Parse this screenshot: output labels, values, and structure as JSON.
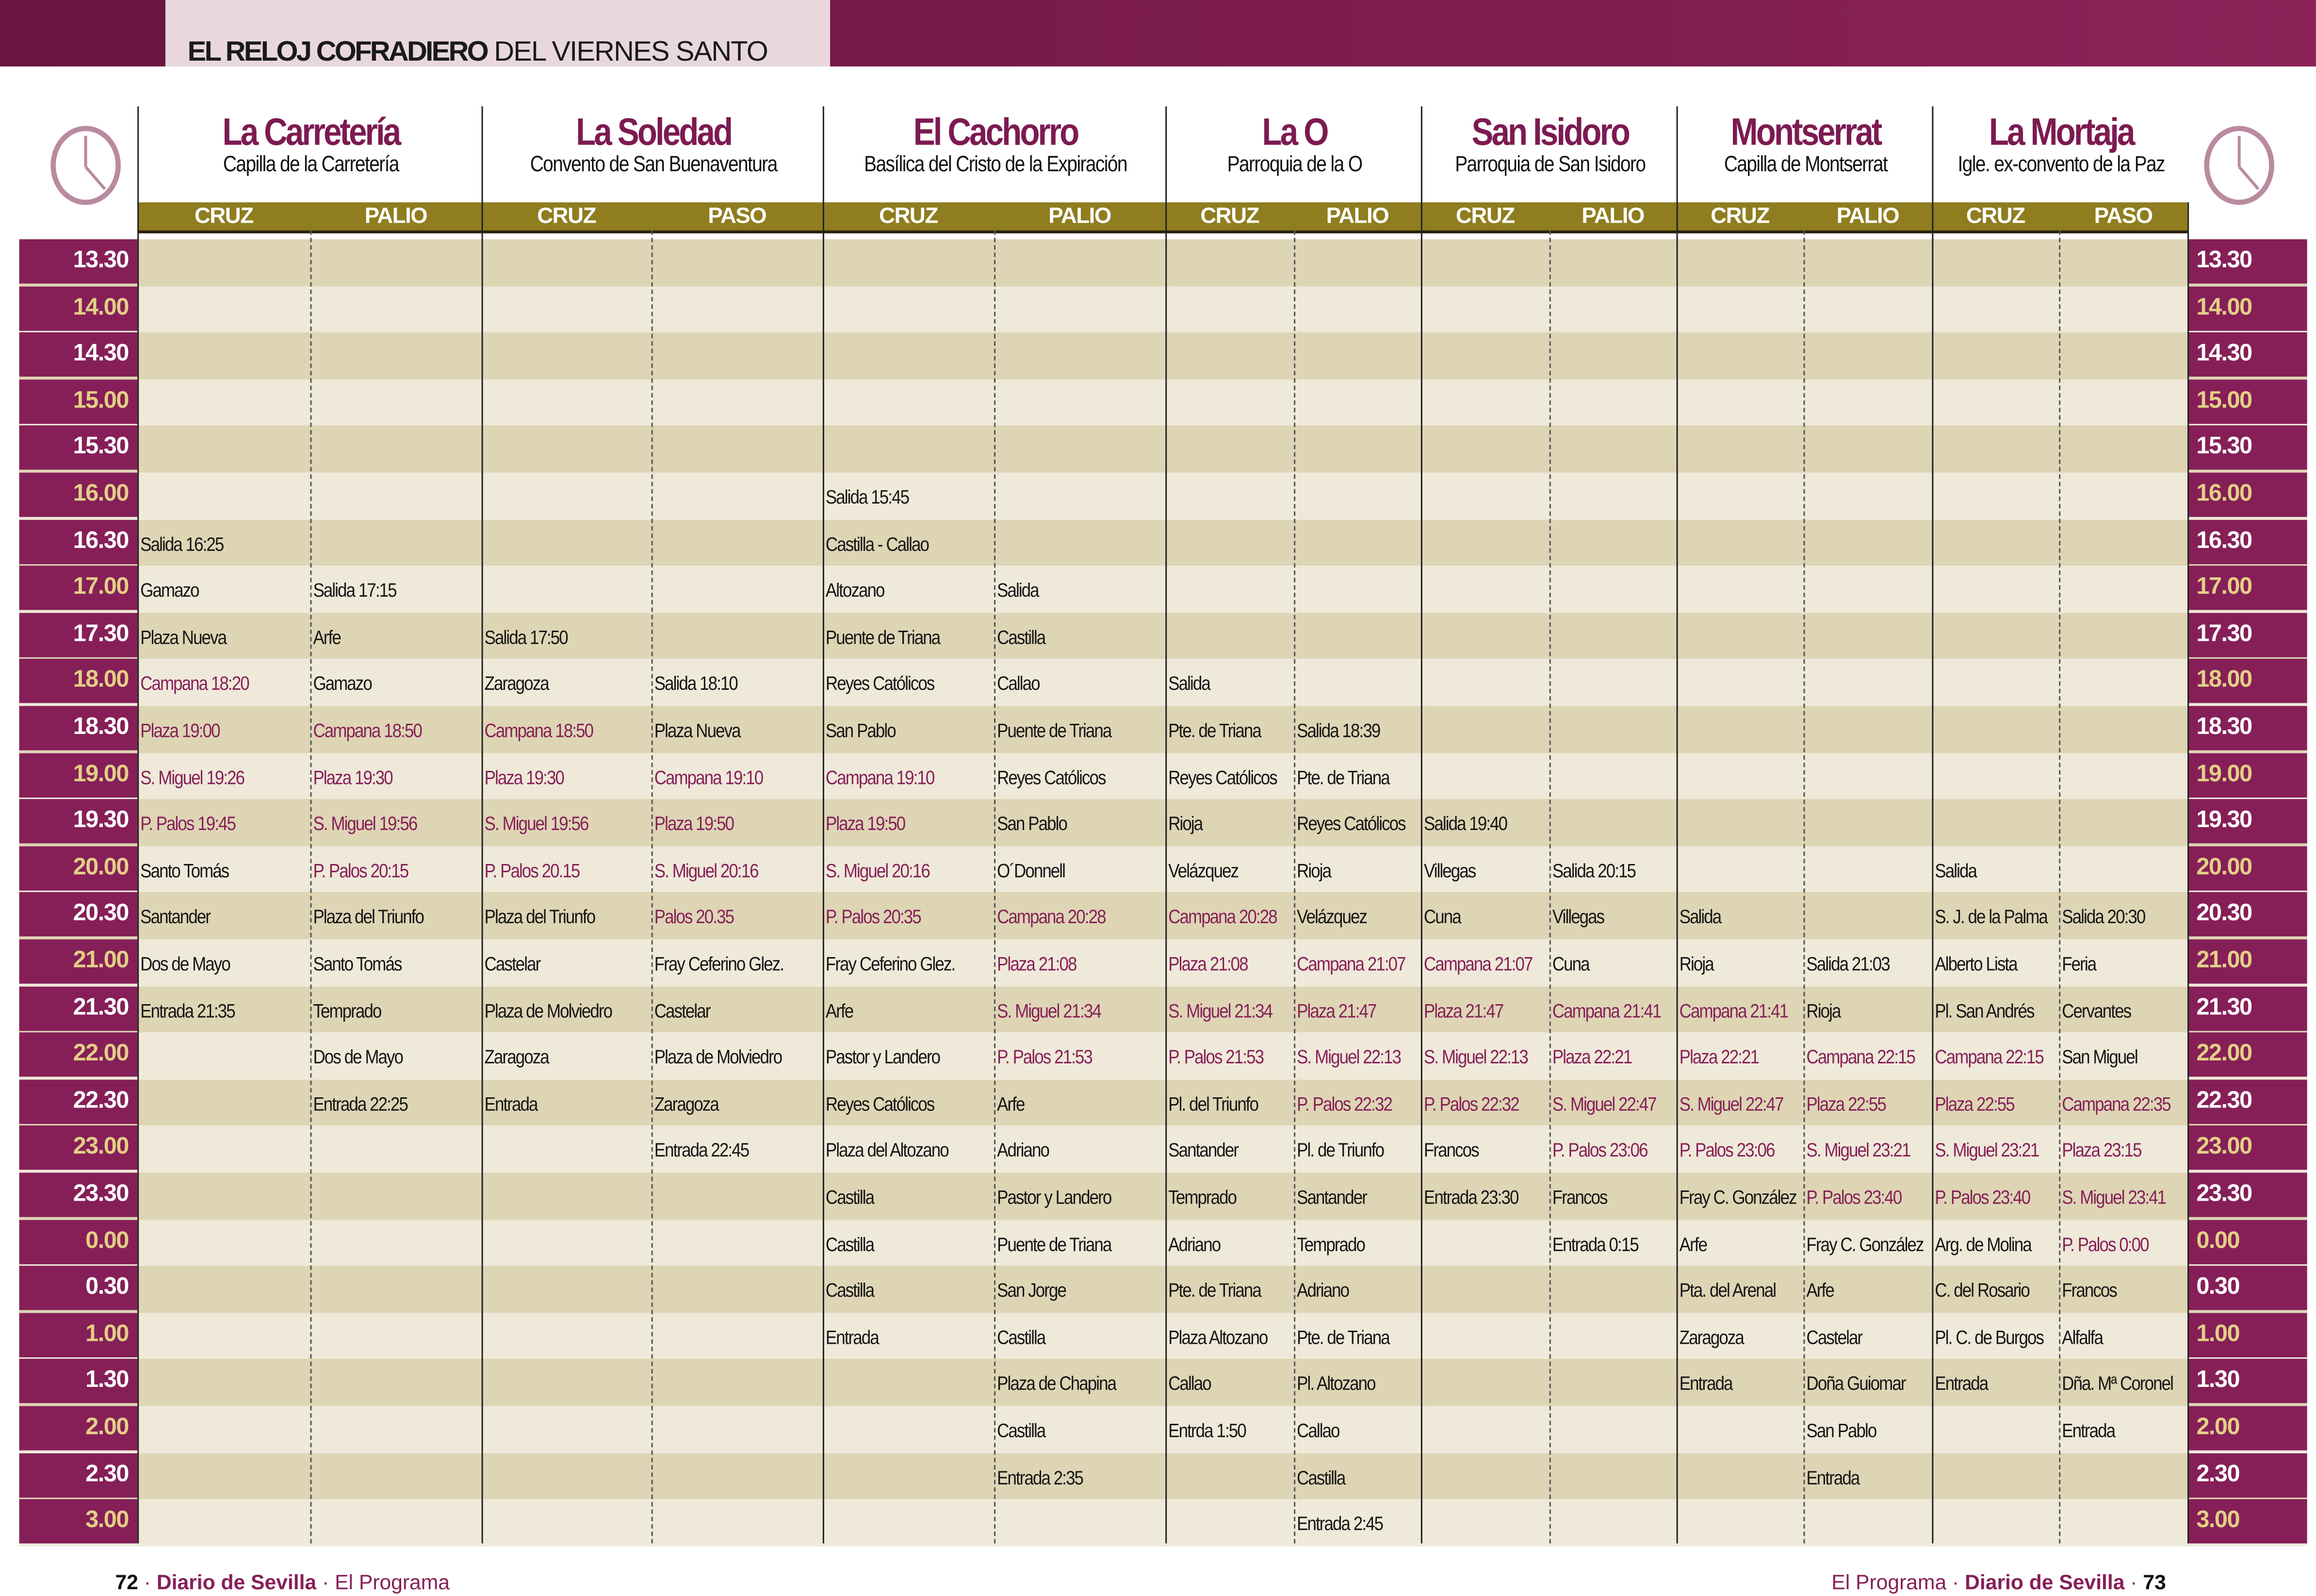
{
  "header": {
    "title_bold": "EL RELOJ COFRADIERO",
    "title_rest": "DEL VIERNES SANTO"
  },
  "colors": {
    "purple": "#861f58",
    "olive": "#8f7d1f",
    "row_dark": "#ded5b5",
    "row_light": "#efe9da",
    "gold_time": "#e2cf86"
  },
  "brotherhoods": [
    {
      "name": "La Carretería",
      "church": "Capilla de la Carretería",
      "cols": [
        "CRUZ",
        "PALIO"
      ]
    },
    {
      "name": "La Soledad",
      "church": "Convento de San Buenaventura",
      "cols": [
        "CRUZ",
        "PASO"
      ]
    },
    {
      "name": "El Cachorro",
      "church": "Basílica del Cristo de la Expiración",
      "cols": [
        "CRUZ",
        "PALIO"
      ]
    },
    {
      "name": "La O",
      "church": "Parroquia de la O",
      "cols": [
        "CRUZ",
        "PALIO"
      ]
    },
    {
      "name": "San Isidoro",
      "church": "Parroquia de San Isidoro",
      "cols": [
        "CRUZ",
        "PALIO"
      ]
    },
    {
      "name": "Montserrat",
      "church": "Capilla de Montserrat",
      "cols": [
        "CRUZ",
        "PALIO"
      ]
    },
    {
      "name": "La Mortaja",
      "church": "Igle. ex-convento de la Paz",
      "cols": [
        "CRUZ",
        "PASO"
      ]
    }
  ],
  "rows": [
    {
      "time": "13.30",
      "cells": [
        "",
        "",
        "",
        "",
        "",
        "",
        "",
        "",
        "",
        "",
        "",
        "",
        "",
        ""
      ]
    },
    {
      "time": "14.00",
      "cells": [
        "",
        "",
        "",
        "",
        "",
        "",
        "",
        "",
        "",
        "",
        "",
        "",
        "",
        ""
      ]
    },
    {
      "time": "14.30",
      "cells": [
        "",
        "",
        "",
        "",
        "",
        "",
        "",
        "",
        "",
        "",
        "",
        "",
        "",
        ""
      ]
    },
    {
      "time": "15.00",
      "cells": [
        "",
        "",
        "",
        "",
        "",
        "",
        "",
        "",
        "",
        "",
        "",
        "",
        "",
        ""
      ]
    },
    {
      "time": "15.30",
      "cells": [
        "",
        "",
        "",
        "",
        "",
        "",
        "",
        "",
        "",
        "",
        "",
        "",
        "",
        ""
      ]
    },
    {
      "time": "16.00",
      "cells": [
        "",
        "",
        "",
        "",
        "Salida 15:45",
        "",
        "",
        "",
        "",
        "",
        "",
        "",
        "",
        ""
      ]
    },
    {
      "time": "16.30",
      "cells": [
        "Salida 16:25",
        "",
        "",
        "",
        "Castilla - Callao",
        "",
        "",
        "",
        "",
        "",
        "",
        "",
        "",
        ""
      ]
    },
    {
      "time": "17.00",
      "cells": [
        "Gamazo",
        "Salida 17:15",
        "",
        "",
        "Altozano",
        "Salida",
        "",
        "",
        "",
        "",
        "",
        "",
        "",
        ""
      ]
    },
    {
      "time": "17.30",
      "cells": [
        "Plaza Nueva",
        "Arfe",
        "Salida 17:50",
        "",
        "Puente de Triana",
        "Castilla",
        "",
        "",
        "",
        "",
        "",
        "",
        "",
        ""
      ]
    },
    {
      "time": "18.00",
      "cells": [
        "Campana 18:20",
        "Gamazo",
        "Zaragoza",
        "Salida 18:10",
        "Reyes Católicos",
        "Callao",
        "Salida",
        "",
        "",
        "",
        "",
        "",
        "",
        ""
      ]
    },
    {
      "time": "18.30",
      "cells": [
        "Plaza 19:00",
        "Campana 18:50",
        "Campana 18:50",
        "Plaza Nueva",
        "San Pablo",
        "Puente de Triana",
        "Pte. de Triana",
        "Salida 18:39",
        "",
        "",
        "",
        "",
        "",
        ""
      ]
    },
    {
      "time": "19.00",
      "cells": [
        "S. Miguel 19:26",
        "Plaza 19:30",
        "Plaza 19:30",
        "Campana 19:10",
        "Campana 19:10",
        "Reyes Católicos",
        "Reyes Católicos",
        "Pte. de Triana",
        "",
        "",
        "",
        "",
        "",
        ""
      ]
    },
    {
      "time": "19.30",
      "cells": [
        "P. Palos 19:45",
        "S. Miguel 19:56",
        "S. Miguel 19:56",
        "Plaza 19:50",
        "Plaza 19:50",
        "San Pablo",
        "Rioja",
        "Reyes Católicos",
        "Salida 19:40",
        "",
        "",
        "",
        "",
        ""
      ]
    },
    {
      "time": "20.00",
      "cells": [
        "Santo Tomás",
        "P. Palos 20:15",
        "P. Palos 20.15",
        "S. Miguel 20:16",
        "S. Miguel 20:16",
        "O´Donnell",
        "Velázquez",
        "Rioja",
        "Villegas",
        "Salida 20:15",
        "",
        "",
        "Salida",
        ""
      ]
    },
    {
      "time": "20.30",
      "cells": [
        "Santander",
        "Plaza del Triunfo",
        "Plaza del Triunfo",
        "Palos 20.35",
        "P. Palos 20:35",
        "Campana 20:28",
        "Campana 20:28",
        "Velázquez",
        "Cuna",
        "Villegas",
        "Salida",
        "",
        "S. J. de la Palma",
        "Salida 20:30"
      ]
    },
    {
      "time": "21.00",
      "cells": [
        "Dos de Mayo",
        "Santo Tomás",
        "Castelar",
        "Fray Ceferino Glez.",
        "Fray Ceferino Glez.",
        "Plaza 21:08",
        "Plaza 21:08",
        "Campana 21:07",
        "Campana 21:07",
        "Cuna",
        "Rioja",
        "Salida 21:03",
        "Alberto Lista",
        "Feria"
      ]
    },
    {
      "time": "21.30",
      "cells": [
        "Entrada 21:35",
        "Temprado",
        "Plaza de Molviedro",
        "Castelar",
        "Arfe",
        "S. Miguel 21:34",
        "S. Miguel 21:34",
        "Plaza 21:47",
        "Plaza 21:47",
        "Campana 21:41",
        "Campana 21:41",
        "Rioja",
        "Pl. San Andrés",
        "Cervantes"
      ]
    },
    {
      "time": "22.00",
      "cells": [
        "",
        "Dos de Mayo",
        "Zaragoza",
        "Plaza de Molviedro",
        "Pastor y Landero",
        "P. Palos 21:53",
        "P. Palos 21:53",
        "S. Miguel 22:13",
        "S. Miguel 22:13",
        "Plaza 22:21",
        "Plaza 22:21",
        "Campana 22:15",
        "Campana 22:15",
        "San Miguel"
      ]
    },
    {
      "time": "22.30",
      "cells": [
        "",
        "Entrada 22:25",
        "Entrada",
        "Zaragoza",
        "Reyes Católicos",
        "Arfe",
        "Pl. del Triunfo",
        "P. Palos 22:32",
        "P. Palos 22:32",
        "S. Miguel 22:47",
        "S. Miguel 22:47",
        "Plaza 22:55",
        "Plaza 22:55",
        "Campana 22:35"
      ]
    },
    {
      "time": "23.00",
      "cells": [
        "",
        "",
        "",
        "Entrada 22:45",
        "Plaza del Altozano",
        "Adriano",
        "Santander",
        "Pl. de Triunfo",
        "Francos",
        "P. Palos 23:06",
        "P. Palos 23:06",
        "S. Miguel 23:21",
        "S. Miguel 23:21",
        "Plaza 23:15"
      ]
    },
    {
      "time": "23.30",
      "cells": [
        "",
        "",
        "",
        "",
        "Castilla",
        "Pastor y Landero",
        "Temprado",
        "Santander",
        "Entrada 23:30",
        "Francos",
        "Fray C. González",
        "P. Palos 23:40",
        "P. Palos 23:40",
        "S. Miguel 23:41"
      ]
    },
    {
      "time": "0.00",
      "cells": [
        "",
        "",
        "",
        "",
        "Castilla",
        "Puente de Triana",
        "Adriano",
        "Temprado",
        "",
        "Entrada 0:15",
        "Arfe",
        "Fray C. González",
        "Arg. de Molina",
        "P. Palos 0:00"
      ]
    },
    {
      "time": "0.30",
      "cells": [
        "",
        "",
        "",
        "",
        "Castilla",
        "San Jorge",
        "Pte. de Triana",
        "Adriano",
        "",
        "",
        "Pta. del Arenal",
        "Arfe",
        "C. del Rosario",
        "Francos"
      ]
    },
    {
      "time": "1.00",
      "cells": [
        "",
        "",
        "",
        "",
        "Entrada",
        "Castilla",
        "Plaza Altozano",
        "Pte. de Triana",
        "",
        "",
        "Zaragoza",
        "Castelar",
        "Pl. C. de Burgos",
        "Alfalfa"
      ]
    },
    {
      "time": "1.30",
      "cells": [
        "",
        "",
        "",
        "",
        "",
        "Plaza de Chapina",
        "Callao",
        "Pl. Altozano",
        "",
        "",
        "Entrada",
        "Doña Guiomar",
        "Entrada",
        "Dña. Mª Coronel"
      ]
    },
    {
      "time": "2.00",
      "cells": [
        "",
        "",
        "",
        "",
        "",
        "Castilla",
        "Entrda 1:50",
        "Callao",
        "",
        "",
        "",
        "San Pablo",
        "",
        "Entrada"
      ]
    },
    {
      "time": "2.30",
      "cells": [
        "",
        "",
        "",
        "",
        "",
        "Entrada 2:35",
        "",
        "Castilla",
        "",
        "",
        "",
        "Entrada",
        "",
        ""
      ]
    },
    {
      "time": "3.00",
      "cells": [
        "",
        "",
        "",
        "",
        "",
        "",
        "",
        "Entrada 2:45",
        "",
        "",
        "",
        "",
        "",
        ""
      ]
    }
  ],
  "footer": {
    "left_page": "72",
    "left_paper": "Diario de Sevilla",
    "left_section": "El Programa",
    "right_section": "El Programa",
    "right_paper": "Diario de Sevilla",
    "right_page": "73"
  }
}
